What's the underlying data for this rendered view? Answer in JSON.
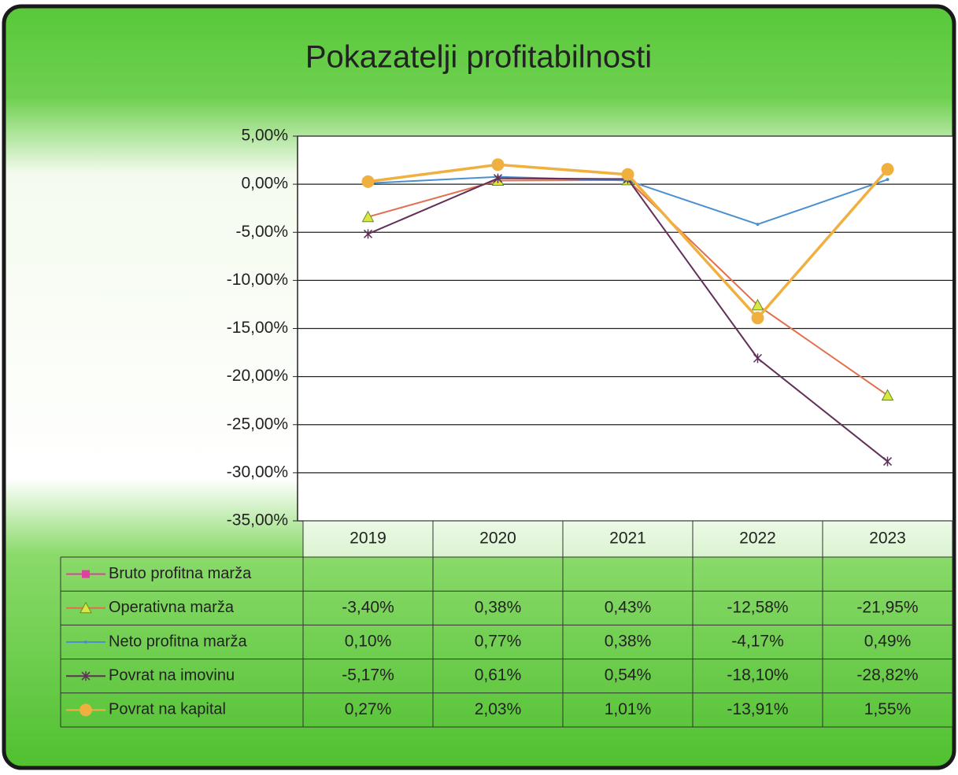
{
  "chart_data": {
    "type": "line",
    "title": "Pokazatelji profitabilnosti",
    "categories": [
      "2019",
      "2020",
      "2021",
      "2022",
      "2023"
    ],
    "ylim": [
      -35,
      5
    ],
    "yticks": [
      {
        "value": 5,
        "label": "5,00%"
      },
      {
        "value": 0,
        "label": "0,00%"
      },
      {
        "value": -5,
        "label": "-5,00%"
      },
      {
        "value": -10,
        "label": "-10,00%"
      },
      {
        "value": -15,
        "label": "-15,00%"
      },
      {
        "value": -20,
        "label": "-20,00%"
      },
      {
        "value": -25,
        "label": "-25,00%"
      },
      {
        "value": -30,
        "label": "-30,00%"
      },
      {
        "value": -35,
        "label": "-35,00%"
      }
    ],
    "grid": true,
    "series": [
      {
        "name": "Bruto profitna marža",
        "color": "#e040a0",
        "marker": "square",
        "values": [
          null,
          null,
          null,
          null,
          null
        ],
        "value_labels": [
          null,
          null,
          null,
          null,
          null
        ]
      },
      {
        "name": "Operativna marža",
        "color": "#e07050",
        "marker": "triangle",
        "values": [
          -3.4,
          0.38,
          0.43,
          -12.58,
          -21.95
        ],
        "value_labels": [
          "-3,40%",
          "0,38%",
          "0,43%",
          "-12,58%",
          "-21,95%"
        ]
      },
      {
        "name": "Neto profitna marža",
        "color": "#4a90d0",
        "marker": "none",
        "values": [
          0.1,
          0.77,
          0.38,
          -4.17,
          0.49
        ],
        "value_labels": [
          "0,10%",
          "0,77%",
          "0,38%",
          "-4,17%",
          "0,49%"
        ]
      },
      {
        "name": "Povrat na imovinu",
        "color": "#603058",
        "marker": "star",
        "values": [
          -5.17,
          0.61,
          0.54,
          -18.1,
          -28.82
        ],
        "value_labels": [
          "-5,17%",
          "0,61%",
          "0,54%",
          "-18,10%",
          "-28,82%"
        ]
      },
      {
        "name": "Povrat na kapital",
        "color": "#f0b040",
        "marker": "circle",
        "values": [
          0.27,
          2.03,
          1.01,
          -13.91,
          1.55
        ],
        "value_labels": [
          "0,27%",
          "2,03%",
          "1,01%",
          "-13,91%",
          "1,55%"
        ]
      }
    ]
  }
}
